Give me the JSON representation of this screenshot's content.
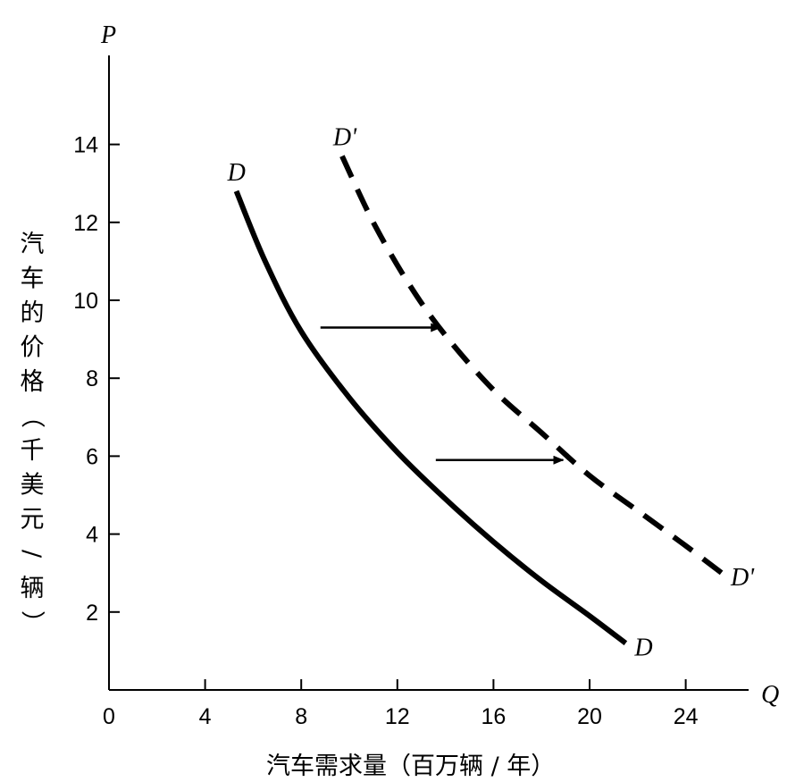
{
  "chart_data": {
    "type": "line",
    "title": "",
    "x_axis_symbol": "Q",
    "y_axis_symbol": "P",
    "xlabel": "汽车需求量（百万辆 / 年）",
    "ylabel": "汽车的价格（千美元/辆）",
    "xlim": [
      0,
      27
    ],
    "ylim": [
      0,
      16.3
    ],
    "x_ticks": [
      0,
      4,
      8,
      12,
      16,
      20,
      24
    ],
    "y_ticks": [
      2,
      4,
      6,
      8,
      10,
      12,
      14
    ],
    "grid": false,
    "series": [
      {
        "name": "D",
        "label_start": "D",
        "label_end": "D",
        "style": "solid",
        "color": "#000000",
        "points": [
          [
            5.3,
            12.8
          ],
          [
            6.5,
            11.0
          ],
          [
            8.0,
            9.2
          ],
          [
            10.0,
            7.5
          ],
          [
            12.0,
            6.1
          ],
          [
            14.0,
            4.9
          ],
          [
            16.0,
            3.8
          ],
          [
            18.0,
            2.8
          ],
          [
            20.0,
            1.9
          ],
          [
            21.5,
            1.2
          ]
        ]
      },
      {
        "name": "D'",
        "label_start": "D'",
        "label_end": "D'",
        "style": "dashed",
        "color": "#000000",
        "points": [
          [
            9.7,
            13.7
          ],
          [
            11.0,
            12.0
          ],
          [
            12.5,
            10.4
          ],
          [
            14.0,
            9.1
          ],
          [
            16.0,
            7.7
          ],
          [
            18.0,
            6.6
          ],
          [
            20.0,
            5.5
          ],
          [
            22.0,
            4.6
          ],
          [
            24.0,
            3.7
          ],
          [
            25.5,
            3.0
          ]
        ]
      }
    ],
    "annotations": [
      {
        "type": "arrow",
        "from": [
          8.8,
          9.3
        ],
        "to": [
          13.8,
          9.3
        ]
      },
      {
        "type": "arrow",
        "from": [
          13.6,
          5.9
        ],
        "to": [
          18.9,
          5.9
        ]
      }
    ]
  }
}
